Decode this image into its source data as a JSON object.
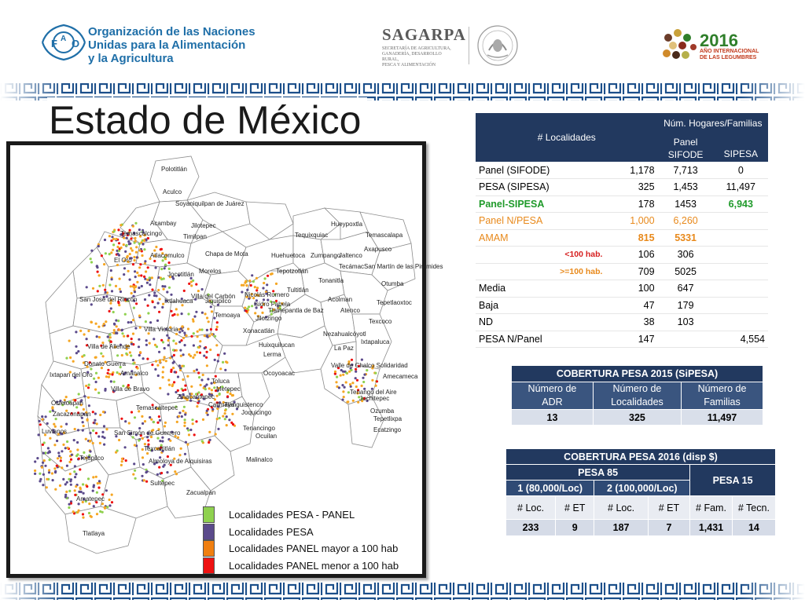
{
  "header": {
    "fao_logo_icon": "fao-logo-icon",
    "fao_text_1": "Organización de las Naciones",
    "fao_text_2": "Unidas para la Alimentación",
    "fao_text_3": "y la Agricultura",
    "sagarpa_title": "SAGARPA",
    "sagarpa_sub_1": "SECRETARÍA DE AGRICULTURA,",
    "sagarpa_sub_2": "GANADERÍA, DESARROLLO RURAL,",
    "sagarpa_sub_3": "PESCA Y ALIMENTACIÓN",
    "legumes_year": "2016",
    "legumes_sub_1": "AÑO INTERNACIONAL",
    "legumes_sub_2": "DE LAS LEGUMBRES"
  },
  "title": "Estado de México",
  "colors": {
    "navy": "#22395f",
    "green": "#8fd14f",
    "purple": "#5b4a8b",
    "orange": "#f5a623",
    "red": "#ee1111"
  },
  "map": {
    "labels": [
      "Polotitlán",
      "Aculco",
      "Soyaniquilpan de Juárez",
      "Acambay",
      "Jilotepec",
      "Temascalcingo",
      "Timilpan",
      "Hueypoxtla",
      "Tequixquiac",
      "Temascalapa",
      "El Oro",
      "Atlacomulco",
      "Chapa de Mota",
      "Huehuetoca",
      "Zumpango",
      "Jaltenco",
      "Axapusco",
      "Jocotitlán",
      "Morelos",
      "Tepotzotlán",
      "Tecámac",
      "San Martín de las Pirámides",
      "San José del Rincón",
      "Villa del Carbón",
      "Nicolás Romero",
      "Tultitlán",
      "Tonanitla",
      "Otumba",
      "Ixtlahuaca",
      "Jiquipilco",
      "Isidro Fabela",
      "Tlalnepantla de Baz",
      "Acolman",
      "Tepetlaoxtoc",
      "Temoaya",
      "Jilotzingo",
      "Atenco",
      "Texcoco",
      "Villa Victoria",
      "Xonacatlán",
      "Huixquilucan",
      "Nezahualcóyotl",
      "La Paz",
      "Villa de Allende",
      "Lerma",
      "Ixtapaluca",
      "Donato Guerra",
      "Ocoyoacac",
      "Valle de Chalco Solidaridad",
      "Ixtapan del Oro",
      "Amanalco",
      "Toluca",
      "Amecameca",
      "Villa de Bravo",
      "Zinacantepec",
      "Metepec",
      "Calimaya",
      "Tianguistenco",
      "Tenango del Aire",
      "Otzoloapan",
      "Temascaltepec",
      "Juchitepec",
      "Zacazonapan",
      "Joquicingo",
      "Ozumba",
      "Tepetlixpa",
      "Luvianos",
      "San Simón de Guerrero",
      "Tenancingo",
      "Ocuilan",
      "Ecatzingo",
      "Tejupilco",
      "Texcaltitlán",
      "Almoloya de Alquisiras",
      "Malinalco",
      "Sultepec",
      "Zacualpan",
      "Amatepec",
      "Tlatlaya"
    ]
  },
  "legend": [
    {
      "label": "Localidades PESA - PANEL",
      "color": "#8fd14f"
    },
    {
      "label": "Localidades PESA",
      "color": "#5b4a8b"
    },
    {
      "label": "Localidades PANEL mayor a 100 hab",
      "color": "#f5a623"
    },
    {
      "label": "Localidades PANEL menor a 100 hab",
      "color": "#ee1111"
    }
  ],
  "table1": {
    "header_localidades": "# Localidades",
    "header_hogares": "Núm. Hogares/Familias",
    "header_panel": "Panel",
    "header_sifode": "SIFODE",
    "header_sipesa": "SIPESA",
    "rows": [
      {
        "label": "Panel (SIFODE)",
        "loc": "1,178",
        "panel": "7,713",
        "sipesa": "0"
      },
      {
        "label": "PESA (SIPESA)",
        "loc": "325",
        "panel": "1,453",
        "sipesa": "11,497"
      },
      {
        "label": "Panel-SIPESA",
        "loc": "178",
        "panel": "1453",
        "sipesa": "6,943"
      },
      {
        "label": "Panel N/PESA",
        "loc": "1,000",
        "panel": "6,260",
        "sipesa": ""
      },
      {
        "label": "AMAM",
        "loc": "815",
        "panel": "5331",
        "sipesa": ""
      },
      {
        "label": "<100 hab.",
        "loc": "106",
        "panel": "306",
        "sipesa": ""
      },
      {
        "label": ">=100 hab.",
        "loc": "709",
        "panel": "5025",
        "sipesa": ""
      },
      {
        "label": "Media",
        "loc": "100",
        "panel": "647",
        "sipesa": ""
      },
      {
        "label": "Baja",
        "loc": "47",
        "panel": "179",
        "sipesa": ""
      },
      {
        "label": "ND",
        "loc": "38",
        "panel": "103",
        "sipesa": ""
      },
      {
        "label": "PESA N/Panel",
        "loc": "147",
        "panel": "",
        "sipesa": "4,554"
      }
    ]
  },
  "table2": {
    "caption": "COBERTURA  PESA 2015 (SiPESA)",
    "h1_a": "Número de",
    "h1_b": "ADR",
    "h2_a": "Número de",
    "h2_b": "Localidades",
    "h3_a": "Número de",
    "h3_b": "Familias",
    "v1": "13",
    "v2": "325",
    "v3": "11,497"
  },
  "table3": {
    "caption": "COBERTURA PESA 2016 (disp $)",
    "pesa85": "PESA 85",
    "pesa15": "PESA 15",
    "g1": "1 (80,000/Loc)",
    "g2": "2 (100,000/Loc)",
    "c1": "#  Loc.",
    "c2": "# ET",
    "c3": "# Loc.",
    "c4": "# ET",
    "c5": "# Fam.",
    "c6": "# Tecn.",
    "v1": "233",
    "v2": "9",
    "v3": "187",
    "v4": "7",
    "v5": "1,431",
    "v6": "14"
  }
}
